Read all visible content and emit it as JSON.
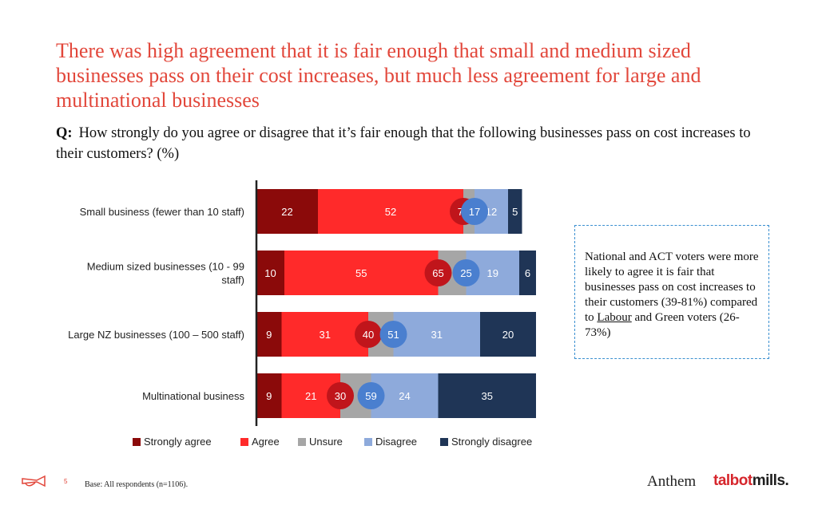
{
  "title": "There was high agreement that it is fair enough that small and medium sized businesses pass on their cost increases, but much less agreement for large and multinational businesses",
  "question": {
    "prefix": "Q:",
    "text": "How strongly do you agree or disagree that it’s fair enough that the following businesses pass on cost increases to their customers? (%)"
  },
  "callout": {
    "text_before": "National and ACT voters were more likely to agree it is fair that businesses pass on cost increases to their customers (39-81%) compared to ",
    "underlined": "Labour",
    "text_after": " and Green voters (26-73%)"
  },
  "footer": {
    "base": "Base: All respondents (n=1106).",
    "page_number": "5",
    "brand_anthem": "Anthem",
    "brand_tm_1": "talbot",
    "brand_tm_2": "mills."
  },
  "colors": {
    "strongly_agree": "#8b0a0a",
    "agree": "#ff2a2a",
    "unsure": "#a6a6a6",
    "disagree": "#8eaadb",
    "strongly_disagree": "#1f3556",
    "net_agree_circle": "#c0151b",
    "net_disagree_circle": "#4a7fcf"
  },
  "chart_data": {
    "type": "bar",
    "orientation": "horizontal-stacked",
    "categories": [
      [
        "Small business (fewer than 10 staff)"
      ],
      [
        "Medium sized businesses (10 - 99",
        "staff)"
      ],
      [
        "Large NZ businesses (100 – 500 staff)"
      ],
      [
        "Multinational business"
      ]
    ],
    "series": [
      {
        "name": "Strongly agree",
        "values": [
          22,
          10,
          9,
          9
        ]
      },
      {
        "name": "Agree",
        "values": [
          52,
          55,
          31,
          21
        ]
      },
      {
        "name": "Unsure",
        "values": [
          4,
          10,
          9,
          11
        ]
      },
      {
        "name": "Disagree",
        "values": [
          12,
          19,
          31,
          24
        ]
      },
      {
        "name": "Strongly disagree",
        "values": [
          5,
          6,
          20,
          35
        ]
      }
    ],
    "unsure_labels_shown": false,
    "net_agree": [
      74,
      65,
      40,
      30
    ],
    "net_disagree": [
      17,
      25,
      51,
      59
    ],
    "legend": [
      "Strongly agree",
      "Agree",
      "Unsure",
      "Disagree",
      "Strongly disagree"
    ],
    "legend_position": "bottom",
    "xlim": [
      0,
      100
    ],
    "grid": false
  }
}
